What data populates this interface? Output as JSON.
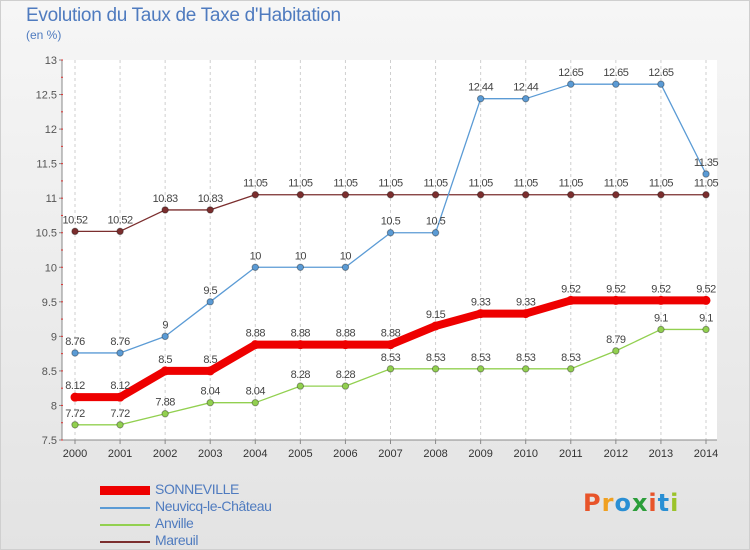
{
  "header": {
    "title": "Evolution du Taux de Taxe d'Habitation",
    "subtitle": "(en %)"
  },
  "logo": {
    "text": "Proxiti",
    "letters": [
      "P",
      "r",
      "o",
      "x",
      "i",
      "t",
      "i"
    ],
    "colors": [
      "#e8542a",
      "#f0a020",
      "#2a8fd4",
      "#2c9e3a",
      "#e8542a",
      "#2a8fd4",
      "#9bc32a"
    ]
  },
  "chart_data": {
    "type": "line",
    "title": "Evolution du Taux de Taxe d'Habitation",
    "ylabel": "(en %)",
    "ylim": [
      7.5,
      13
    ],
    "yticks": [
      "7.5",
      "8",
      "8.5",
      "9",
      "9.5",
      "10",
      "10.5",
      "11",
      "11.5",
      "12",
      "12.5",
      "13"
    ],
    "ytick_values": [
      7.5,
      8,
      8.5,
      9,
      9.5,
      10,
      10.5,
      11,
      11.5,
      12,
      12.5,
      13
    ],
    "x": [
      "2000",
      "2001",
      "2002",
      "2003",
      "2004",
      "2005",
      "2006",
      "2007",
      "2008",
      "2009",
      "2010",
      "2011",
      "2012",
      "2013",
      "2014"
    ],
    "grid": "vertical dashed",
    "legend_position": "bottom-left",
    "series": [
      {
        "name": "SONNEVILLE",
        "color": "#ee0000",
        "width": 8,
        "values": [
          8.12,
          8.12,
          8.5,
          8.5,
          8.88,
          8.88,
          8.88,
          8.88,
          9.15,
          9.33,
          9.33,
          9.52,
          9.52,
          9.52,
          9.52
        ],
        "labels": [
          "8.12",
          "8.12",
          "8.5",
          "8.5",
          "8.88",
          "8.88",
          "8.88",
          "8.88",
          "9.15",
          "9.33",
          "9.33",
          "9.52",
          "9.52",
          "9.52",
          "9.52"
        ]
      },
      {
        "name": "Neuvicq-le-Château",
        "color": "#5b9bd5",
        "width": 1.3,
        "values": [
          8.76,
          8.76,
          9,
          9.5,
          10,
          10,
          10,
          10.5,
          10.5,
          12.44,
          12.44,
          12.65,
          12.65,
          12.65,
          11.35
        ],
        "labels": [
          "8.76",
          "8.76",
          "9",
          "9.5",
          "10",
          "10",
          "10",
          "10.5",
          "10.5",
          "12.44",
          "12.44",
          "12.65",
          "12.65",
          "12.65",
          "11.35"
        ]
      },
      {
        "name": "Anville",
        "color": "#92d050",
        "width": 1.3,
        "values": [
          7.72,
          7.72,
          7.88,
          8.04,
          8.04,
          8.28,
          8.28,
          8.53,
          8.53,
          8.53,
          8.53,
          8.53,
          8.79,
          9.1,
          9.1
        ],
        "labels": [
          "7.72",
          "7.72",
          "7.88",
          "8.04",
          "8.04",
          "8.28",
          "8.28",
          "8.53",
          "8.53",
          "8.53",
          "8.53",
          "8.53",
          "8.79",
          "9.1",
          "9.1"
        ]
      },
      {
        "name": "Mareuil",
        "color": "#7b2e2e",
        "width": 1.3,
        "values": [
          10.52,
          10.52,
          10.83,
          10.83,
          11.05,
          11.05,
          11.05,
          11.05,
          11.05,
          11.05,
          11.05,
          11.05,
          11.05,
          11.05,
          11.05
        ],
        "labels": [
          "10.52",
          "10.52",
          "10.83",
          "10.83",
          "11.05",
          "11.05",
          "11.05",
          "11.05",
          "11.05",
          "11.05",
          "11.05",
          "11.05",
          "11.05",
          "11.05",
          "11.05"
        ]
      }
    ]
  }
}
